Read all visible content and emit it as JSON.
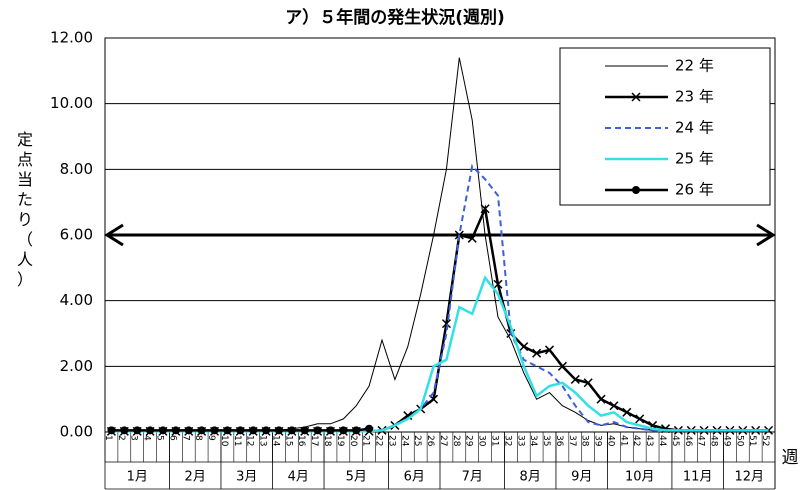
{
  "chart_data": {
    "type": "line",
    "title": "ア）５年間の発生状況(週別)",
    "y_label": "定点当たり（人）",
    "x_label": "週",
    "categories": [
      "1",
      "2",
      "3",
      "4",
      "5",
      "6",
      "7",
      "8",
      "9",
      "10",
      "11",
      "12",
      "13",
      "14",
      "15",
      "16",
      "17",
      "18",
      "19",
      "20",
      "21",
      "22",
      "23",
      "24",
      "25",
      "26",
      "27",
      "28",
      "29",
      "30",
      "31",
      "32",
      "33",
      "34",
      "35",
      "36",
      "37",
      "38",
      "39",
      "40",
      "41",
      "42",
      "43",
      "44",
      "45",
      "46",
      "47",
      "48",
      "49",
      "50",
      "51",
      "52"
    ],
    "month_groups": [
      {
        "label": "1月",
        "span": 5
      },
      {
        "label": "2月",
        "span": 4
      },
      {
        "label": "3月",
        "span": 4
      },
      {
        "label": "4月",
        "span": 4
      },
      {
        "label": "5月",
        "span": 5
      },
      {
        "label": "6月",
        "span": 4
      },
      {
        "label": "7月",
        "span": 5
      },
      {
        "label": "8月",
        "span": 4
      },
      {
        "label": "9月",
        "span": 4
      },
      {
        "label": "10月",
        "span": 5
      },
      {
        "label": "11月",
        "span": 4
      },
      {
        "label": "12月",
        "span": 4
      }
    ],
    "ylim": [
      0,
      12
    ],
    "yticks": [
      {
        "value": 0,
        "label": "0.00"
      },
      {
        "value": 2,
        "label": "2.00"
      },
      {
        "value": 4,
        "label": "4.00"
      },
      {
        "value": 6,
        "label": "6.00"
      },
      {
        "value": 8,
        "label": "8.00"
      },
      {
        "value": 10,
        "label": "10.00"
      },
      {
        "value": 12,
        "label": "12.00"
      }
    ],
    "grid": true,
    "reference_line": 6,
    "legend": "upper right",
    "series": [
      {
        "name": "22 年",
        "color": "#000000",
        "width": 1,
        "dashed": false,
        "marker": "none",
        "values": [
          0.05,
          0.05,
          0.05,
          0.05,
          0.05,
          0.05,
          0.05,
          0.05,
          0.05,
          0.05,
          0.05,
          0.05,
          0.05,
          0.05,
          0.1,
          0.15,
          0.25,
          0.25,
          0.4,
          0.8,
          1.4,
          2.8,
          1.6,
          2.6,
          4.2,
          6.0,
          8.0,
          11.4,
          9.5,
          6.0,
          3.5,
          2.8,
          1.8,
          1.0,
          1.2,
          0.8,
          0.6,
          0.35,
          0.2,
          0.25,
          0.15,
          0.1,
          0.05,
          0.05,
          0.05,
          0.05,
          0.05,
          0.05,
          0.05,
          0.05,
          0.05,
          0.05
        ]
      },
      {
        "name": "23 年",
        "color": "#000000",
        "width": 2.5,
        "dashed": false,
        "marker": "x",
        "values": [
          0.02,
          0.02,
          0.02,
          0.02,
          0.02,
          0.02,
          0.02,
          0.02,
          0.02,
          0.02,
          0.02,
          0.02,
          0.02,
          0.02,
          0.02,
          0.02,
          0.02,
          0.02,
          0.02,
          0.02,
          0.02,
          0.05,
          0.2,
          0.5,
          0.7,
          1.0,
          3.3,
          6.0,
          5.9,
          6.8,
          4.5,
          3.0,
          2.6,
          2.4,
          2.5,
          2.0,
          1.6,
          1.5,
          1.0,
          0.8,
          0.6,
          0.4,
          0.2,
          0.1,
          0.05,
          0.05,
          0.05,
          0.05,
          0.05,
          0.05,
          0.05,
          0.05
        ]
      },
      {
        "name": "24 年",
        "color": "#3d5fd9",
        "width": 2,
        "dashed": true,
        "marker": "none",
        "values": [
          0.02,
          0.02,
          0.02,
          0.02,
          0.02,
          0.02,
          0.02,
          0.02,
          0.02,
          0.02,
          0.02,
          0.02,
          0.02,
          0.02,
          0.02,
          0.02,
          0.02,
          0.02,
          0.02,
          0.02,
          0.02,
          0.05,
          0.2,
          0.4,
          0.7,
          1.2,
          3.0,
          6.0,
          8.1,
          7.7,
          7.2,
          3.0,
          2.2,
          2.0,
          1.8,
          1.4,
          0.8,
          0.3,
          0.2,
          0.3,
          0.15,
          0.1,
          0.05,
          0.05,
          0.05,
          0.05,
          0.05,
          0.05,
          0.05,
          0.05,
          0.05,
          0.05
        ]
      },
      {
        "name": "25 年",
        "color": "#33e0e8",
        "width": 2.5,
        "dashed": false,
        "marker": "none",
        "values": [
          0.02,
          0.02,
          0.02,
          0.02,
          0.02,
          0.02,
          0.02,
          0.02,
          0.02,
          0.02,
          0.02,
          0.02,
          0.02,
          0.02,
          0.02,
          0.02,
          0.02,
          0.02,
          0.02,
          0.02,
          0.02,
          0.05,
          0.2,
          0.4,
          0.7,
          2.0,
          2.2,
          3.8,
          3.6,
          4.7,
          4.2,
          3.2,
          2.0,
          1.1,
          1.4,
          1.5,
          1.2,
          0.8,
          0.5,
          0.6,
          0.3,
          0.2,
          0.1,
          0.05,
          0.05,
          0.05,
          0.05,
          0.05,
          0.05,
          0.05,
          0.05,
          0.05
        ]
      },
      {
        "name": "26 年",
        "color": "#000000",
        "width": 2.5,
        "dashed": false,
        "marker": "circle",
        "values": [
          0.05,
          0.05,
          0.05,
          0.05,
          0.05,
          0.05,
          0.05,
          0.05,
          0.05,
          0.05,
          0.05,
          0.05,
          0.05,
          0.05,
          0.05,
          0.05,
          0.05,
          0.05,
          0.05,
          0.05,
          0.1,
          null,
          null,
          null,
          null,
          null,
          null,
          null,
          null,
          null,
          null,
          null,
          null,
          null,
          null,
          null,
          null,
          null,
          null,
          null,
          null,
          null,
          null,
          null,
          null,
          null,
          null,
          null,
          null,
          null,
          null,
          null
        ]
      }
    ]
  }
}
